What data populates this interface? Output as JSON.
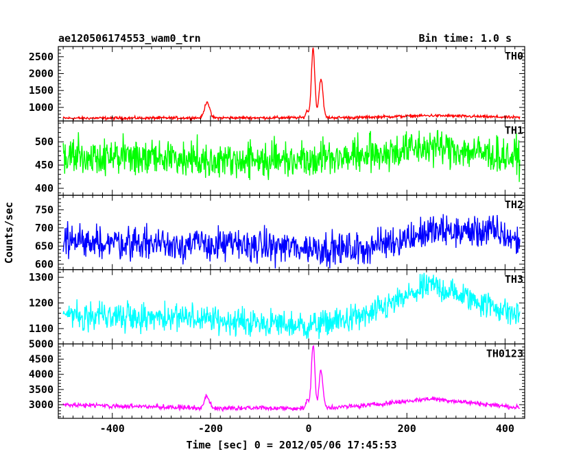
{
  "header": {
    "title": "ae120506174553_wam0_trn",
    "bin_time": "Bin time: 1.0 s"
  },
  "chart_data": {
    "type": "line",
    "xlabel": "Time [sec] 0 = 2012/05/06 17:45:53",
    "ylabel": "Counts/sec",
    "xlim": [
      -510,
      440
    ],
    "x_ticks": [
      -400,
      -200,
      0,
      200,
      400
    ],
    "x_range": [
      -500,
      430
    ],
    "panels": [
      {
        "name": "TH0",
        "color": "#ff0000",
        "ylim": [
          600,
          2800
        ],
        "y_ticks": [
          1000,
          1500,
          2000,
          2500
        ],
        "features": {
          "background": 700,
          "noise": 30,
          "drift": [
            [
              -500,
              680
            ],
            [
              -200,
              690
            ],
            [
              100,
              700
            ],
            [
              250,
              760
            ],
            [
              430,
              700
            ]
          ],
          "peaks": [
            {
              "x": -207,
              "height": 480,
              "width": 5
            },
            {
              "x": -3,
              "height": 200,
              "width": 3
            },
            {
              "x": 9,
              "height": 2050,
              "width": 3.5
            },
            {
              "x": 25,
              "height": 1150,
              "width": 4
            }
          ]
        }
      },
      {
        "name": "TH1",
        "color": "#00ff00",
        "ylim": [
          385,
          545
        ],
        "y_ticks": [
          400,
          450,
          500
        ],
        "features": {
          "background": 468,
          "noise": 28,
          "drift": [
            [
              -500,
              470
            ],
            [
              -100,
              460
            ],
            [
              100,
              470
            ],
            [
              250,
              490
            ],
            [
              430,
              465
            ]
          ],
          "peaks": []
        }
      },
      {
        "name": "TH2",
        "color": "#0000ff",
        "ylim": [
          585,
          790
        ],
        "y_ticks": [
          600,
          650,
          700,
          750
        ],
        "features": {
          "background": 660,
          "noise": 32,
          "drift": [
            [
              -500,
              665
            ],
            [
              -100,
              650
            ],
            [
              100,
              640
            ],
            [
              250,
              690
            ],
            [
              380,
              690
            ],
            [
              430,
              660
            ]
          ],
          "peaks": []
        }
      },
      {
        "name": "TH3",
        "color": "#00ffff",
        "ylim": [
          1040,
          1330
        ],
        "y_ticks": [
          1100,
          1200,
          1300
        ],
        "features": {
          "background": 1140,
          "noise": 38,
          "drift": [
            [
              -500,
              1160
            ],
            [
              -250,
              1140
            ],
            [
              0,
              1110
            ],
            [
              120,
              1150
            ],
            [
              250,
              1270
            ],
            [
              430,
              1150
            ]
          ],
          "peaks": []
        }
      },
      {
        "name": "TH0123",
        "color": "#ff00ff",
        "ylim": [
          2550,
          5000
        ],
        "y_ticks": [
          3000,
          3500,
          4000,
          4500,
          5000
        ],
        "features": {
          "background": 2950,
          "noise": 55,
          "drift": [
            [
              -500,
              3000
            ],
            [
              -250,
              2900
            ],
            [
              0,
              2880
            ],
            [
              100,
              2950
            ],
            [
              250,
              3200
            ],
            [
              430,
              2900
            ]
          ],
          "peaks": [
            {
              "x": -207,
              "height": 380,
              "width": 5
            },
            {
              "x": -3,
              "height": 250,
              "width": 3
            },
            {
              "x": 9,
              "height": 2100,
              "width": 3.5
            },
            {
              "x": 25,
              "height": 1200,
              "width": 4
            }
          ]
        }
      }
    ]
  }
}
